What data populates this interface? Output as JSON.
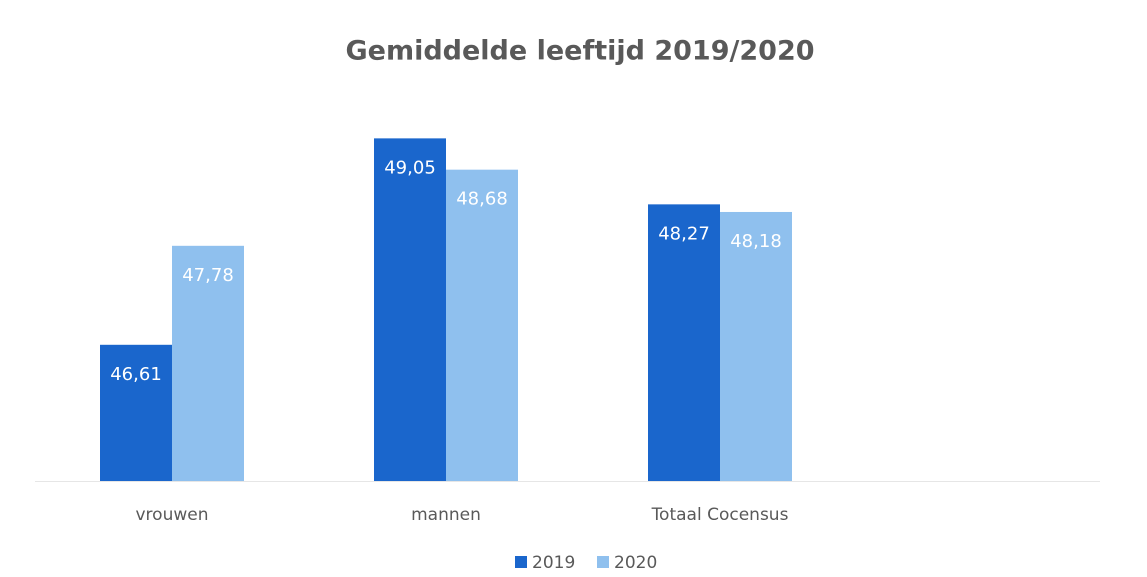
{
  "chart_data": {
    "type": "bar",
    "title": "Gemiddelde leeftijd 2019/2020",
    "categories": [
      "vrouwen",
      "mannen",
      "Totaal Cocensus"
    ],
    "series": [
      {
        "name": "2019",
        "color": "#1a66cc",
        "values": [
          46.61,
          49.05,
          48.27
        ],
        "value_labels": [
          "46,61",
          "49,05",
          "48,27"
        ]
      },
      {
        "name": "2020",
        "color": "#8fc0ee",
        "values": [
          47.78,
          48.68,
          48.18
        ],
        "value_labels": [
          "47,78",
          "48,68",
          "48,18"
        ]
      }
    ],
    "ylim": [
      45,
      50
    ]
  }
}
